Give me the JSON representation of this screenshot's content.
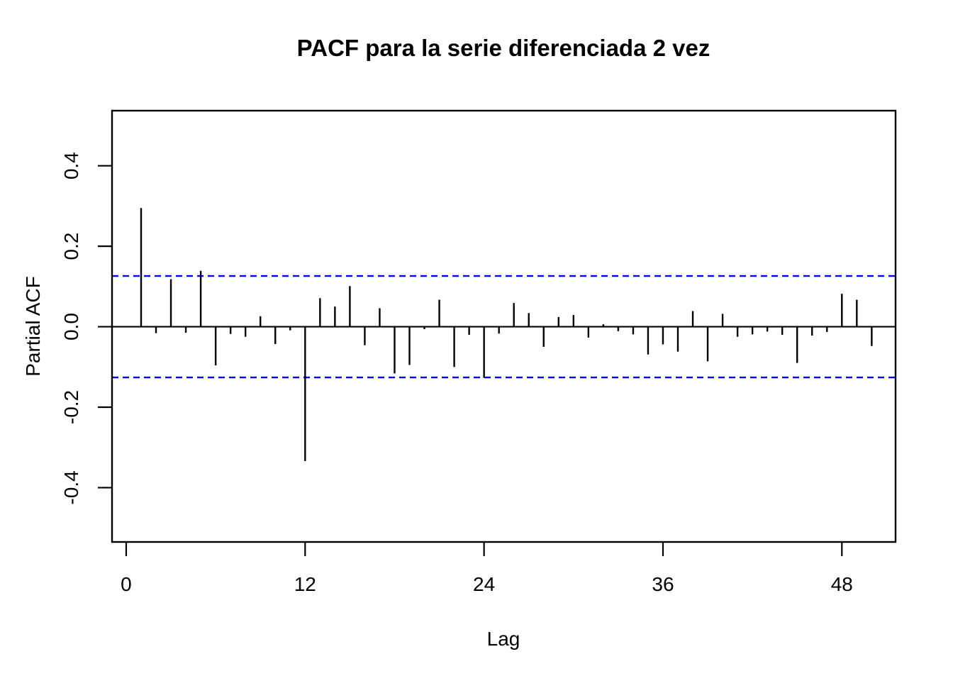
{
  "page": {
    "background_color": "#ffffff"
  },
  "chart_data": {
    "type": "bar",
    "subtype": "pacf-stick-plot",
    "title": "PACF para la serie diferenciada 2 vez",
    "xlabel": "Lag",
    "ylabel": "Partial ACF",
    "grid": false,
    "legend": null,
    "bar_color": "#000000",
    "conf_line_color": "#0000ff",
    "axis_color": "#000000",
    "xlim": [
      -0.95,
      51.6
    ],
    "ylim": [
      -0.535,
      0.537
    ],
    "xticks": [
      {
        "label": "0",
        "v": 0
      },
      {
        "label": "12",
        "v": 12
      },
      {
        "label": "24",
        "v": 24
      },
      {
        "label": "36",
        "v": 36
      },
      {
        "label": "48",
        "v": 48
      }
    ],
    "yticks": [
      {
        "label": "0.4",
        "v": 0.4
      },
      {
        "label": "0.2",
        "v": 0.2
      },
      {
        "label": "0.0",
        "v": 0.0
      },
      {
        "label": "-0.2",
        "v": -0.2
      },
      {
        "label": "-0.4",
        "v": -0.4
      }
    ],
    "confidence_bounds": {
      "upper": 0.126,
      "lower": -0.126
    },
    "lags": [
      1,
      2,
      3,
      4,
      5,
      6,
      7,
      8,
      9,
      10,
      11,
      12,
      13,
      14,
      15,
      16,
      17,
      18,
      19,
      20,
      21,
      22,
      23,
      24,
      25,
      26,
      27,
      28,
      29,
      30,
      31,
      32,
      33,
      34,
      35,
      36,
      37,
      38,
      39,
      40,
      41,
      42,
      43,
      44,
      45,
      46,
      47,
      48,
      49,
      50
    ],
    "values": [
      0.295,
      -0.016,
      0.118,
      -0.015,
      0.139,
      -0.096,
      -0.018,
      -0.025,
      0.026,
      -0.043,
      -0.009,
      -0.334,
      0.071,
      0.05,
      0.101,
      -0.046,
      0.046,
      -0.116,
      -0.095,
      -0.006,
      0.067,
      -0.1,
      -0.02,
      -0.127,
      -0.017,
      0.059,
      0.034,
      -0.05,
      0.024,
      0.029,
      -0.027,
      0.006,
      -0.011,
      -0.019,
      -0.069,
      -0.044,
      -0.062,
      0.039,
      -0.086,
      0.032,
      -0.025,
      -0.019,
      -0.012,
      -0.02,
      -0.09,
      -0.022,
      -0.013,
      0.082,
      0.067,
      -0.048
    ]
  }
}
